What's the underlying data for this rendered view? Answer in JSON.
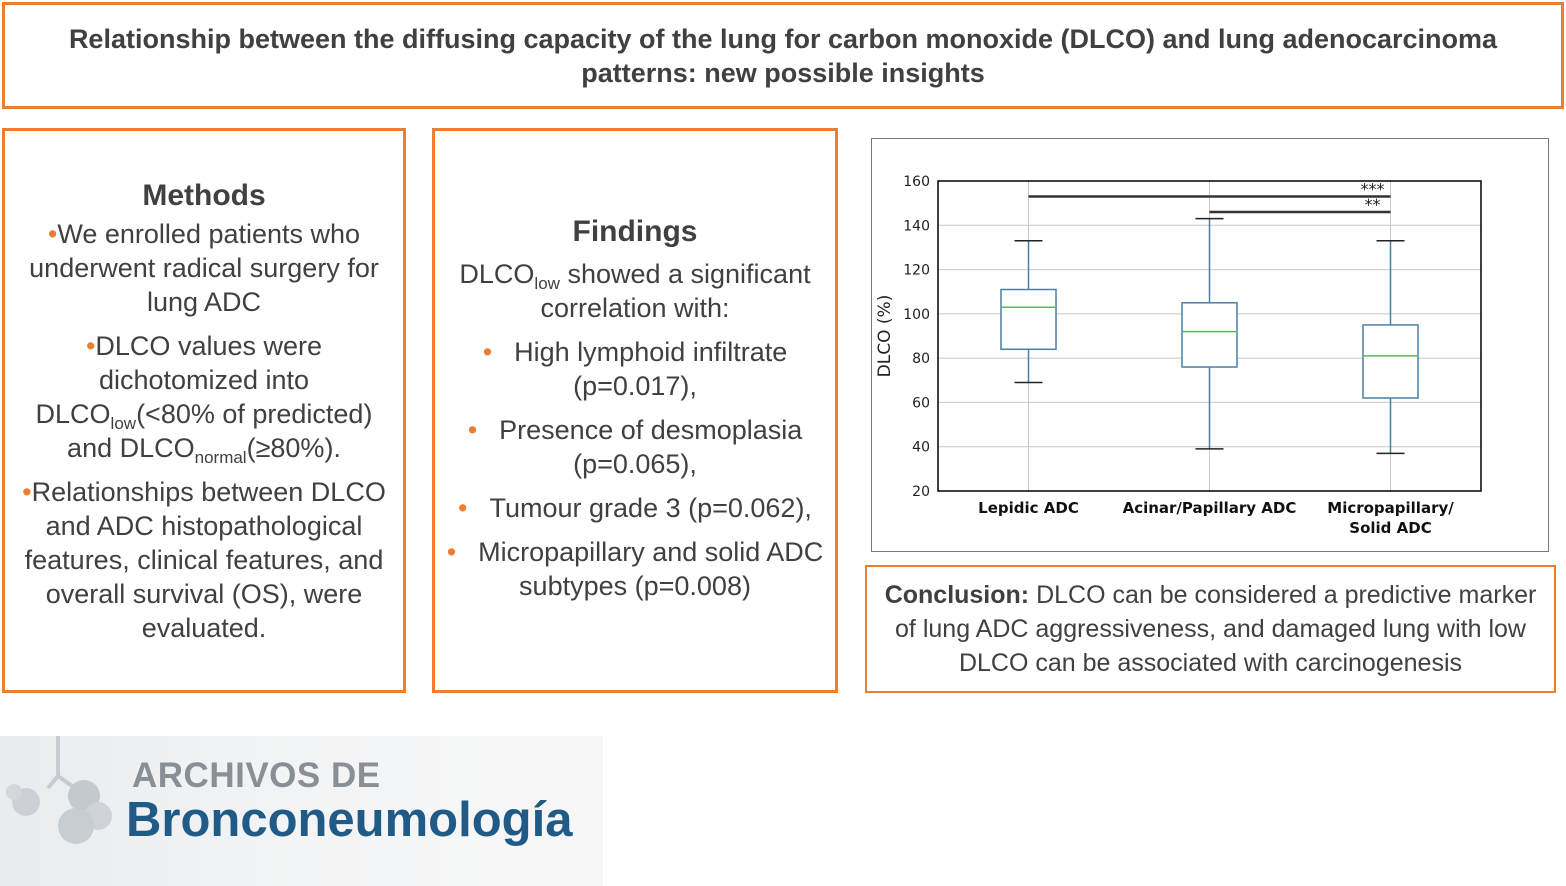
{
  "title": "Relationship between the diffusing capacity of the lung for carbon monoxide (DLCO) and lung adenocarcinoma patterns: new possible insights",
  "methods": {
    "heading": "Methods",
    "bullet": "•",
    "item1": "We enrolled patients who underwent radical surgery for lung ADC",
    "item2_a": "DLCO values were dichotomized into DLCO",
    "item2_sub1": "low",
    "item2_b": "(<80% of predicted) and DLCO",
    "item2_sub2": "normal",
    "item2_c": "(≥80%).",
    "item3": "Relationships between DLCO and ADC histopathological features, clinical features, and overall survival (OS), were evaluated."
  },
  "findings": {
    "heading": "Findings",
    "intro_a": "DLCO",
    "intro_sub": "low",
    "intro_b": " showed a significant correlation with:",
    "bullet": "•",
    "items": [
      "High lymphoid infiltrate (p=0.017),",
      "Presence of desmoplasia (p=0.065),",
      "Tumour grade 3 (p=0.062),",
      "Micropapillary and solid ADC subtypes (p=0.008)"
    ]
  },
  "conclusion": {
    "label": "Conclusion:",
    "text": " DLCO can be considered a predictive marker of lung ADC aggressiveness, and damaged lung with low DLCO can be associated with carcinogenesis"
  },
  "logo": {
    "line1": "ARCHIVOS DE",
    "line2": "Bronconeumología"
  },
  "chart_data": {
    "type": "box",
    "ylabel": "DLCO (%)",
    "ylim": [
      20,
      160
    ],
    "yticks": [
      20,
      40,
      60,
      80,
      100,
      120,
      140,
      160
    ],
    "grid": true,
    "categories": [
      "Lepidic ADC",
      "Acinar/Papillary ADC",
      "Micropapillary/\nSolid ADC"
    ],
    "boxes": [
      {
        "min": 69,
        "q1": 84,
        "median": 103,
        "q3": 111,
        "max": 133
      },
      {
        "min": 39,
        "q1": 76,
        "median": 92,
        "q3": 105,
        "max": 143
      },
      {
        "min": 37,
        "q1": 62,
        "median": 81,
        "q3": 95,
        "max": 133
      }
    ],
    "significance": [
      {
        "from": 0,
        "to": 2,
        "label": "***",
        "y": 153
      },
      {
        "from": 1,
        "to": 2,
        "label": "**",
        "y": 146
      }
    ],
    "colors": {
      "box": "#4c7fa6",
      "median": "#5cb85c",
      "grid": "#c8c8c8",
      "sig": "#333333",
      "axis": "#000000"
    }
  }
}
